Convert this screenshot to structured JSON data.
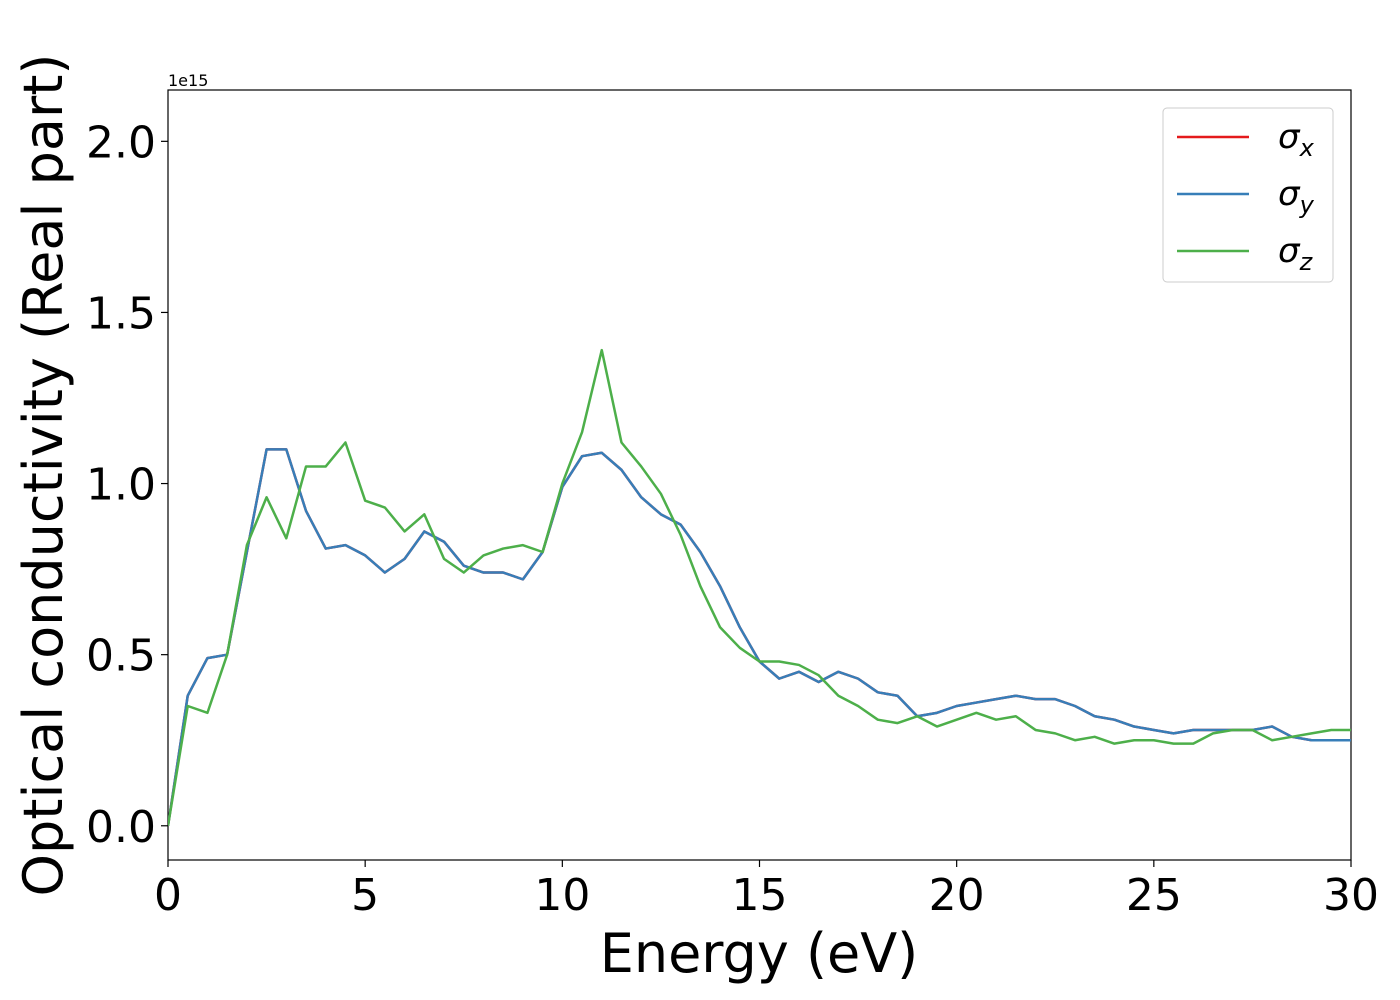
{
  "chart_data": {
    "type": "line",
    "xlabel": "Energy (eV)",
    "ylabel": "Optical conductivity (Real part)",
    "y_offset_label": "1e15",
    "x": [
      0,
      0.5,
      1,
      1.5,
      2,
      2.5,
      3,
      3.5,
      4,
      4.5,
      5,
      5.5,
      6,
      6.5,
      7,
      7.5,
      8,
      8.5,
      9,
      9.5,
      10,
      10.5,
      11,
      11.5,
      12,
      12.5,
      13,
      13.5,
      14,
      14.5,
      15,
      15.5,
      16,
      16.5,
      17,
      17.5,
      18,
      18.5,
      19,
      19.5,
      20,
      20.5,
      21,
      21.5,
      22,
      22.5,
      23,
      23.5,
      24,
      24.5,
      25,
      25.5,
      26,
      26.5,
      27,
      27.5,
      28,
      28.5,
      29,
      29.5,
      30
    ],
    "series": [
      {
        "name": "σx",
        "color": "#e41a1c",
        "values": [
          0,
          0.38,
          0.49,
          0.5,
          0.8,
          1.1,
          1.1,
          0.92,
          0.81,
          0.82,
          0.79,
          0.74,
          0.78,
          0.86,
          0.83,
          0.76,
          0.74,
          0.74,
          0.72,
          0.8,
          0.99,
          1.08,
          1.09,
          1.04,
          0.96,
          0.91,
          0.88,
          0.8,
          0.7,
          0.58,
          0.48,
          0.43,
          0.45,
          0.42,
          0.45,
          0.43,
          0.39,
          0.38,
          0.32,
          0.33,
          0.35,
          0.36,
          0.37,
          0.38,
          0.37,
          0.37,
          0.35,
          0.32,
          0.31,
          0.29,
          0.28,
          0.27,
          0.28,
          0.28,
          0.28,
          0.28,
          0.29,
          0.26,
          0.25,
          0.25,
          0.25
        ]
      },
      {
        "name": "σy",
        "color": "#377eb8",
        "values": [
          0,
          0.38,
          0.49,
          0.5,
          0.8,
          1.1,
          1.1,
          0.92,
          0.81,
          0.82,
          0.79,
          0.74,
          0.78,
          0.86,
          0.83,
          0.76,
          0.74,
          0.74,
          0.72,
          0.8,
          0.99,
          1.08,
          1.09,
          1.04,
          0.96,
          0.91,
          0.88,
          0.8,
          0.7,
          0.58,
          0.48,
          0.43,
          0.45,
          0.42,
          0.45,
          0.43,
          0.39,
          0.38,
          0.32,
          0.33,
          0.35,
          0.36,
          0.37,
          0.38,
          0.37,
          0.37,
          0.35,
          0.32,
          0.31,
          0.29,
          0.28,
          0.27,
          0.28,
          0.28,
          0.28,
          0.28,
          0.29,
          0.26,
          0.25,
          0.25,
          0.25
        ]
      },
      {
        "name": "σz",
        "color": "#4daf4a",
        "values": [
          0,
          0.35,
          0.33,
          0.5,
          0.82,
          0.96,
          0.84,
          1.05,
          1.05,
          1.12,
          0.95,
          0.93,
          0.86,
          0.91,
          0.78,
          0.74,
          0.79,
          0.81,
          0.82,
          0.8,
          1.0,
          1.15,
          1.39,
          1.12,
          1.05,
          0.97,
          0.85,
          0.7,
          0.58,
          0.52,
          0.48,
          0.48,
          0.47,
          0.44,
          0.38,
          0.35,
          0.31,
          0.3,
          0.32,
          0.29,
          0.31,
          0.33,
          0.31,
          0.32,
          0.28,
          0.27,
          0.25,
          0.26,
          0.24,
          0.25,
          0.25,
          0.24,
          0.24,
          0.27,
          0.28,
          0.28,
          0.25,
          0.26,
          0.27,
          0.28,
          0.28
        ]
      }
    ],
    "xlim": [
      0,
      30
    ],
    "xticks": [
      0,
      5,
      10,
      15,
      20,
      25,
      30
    ],
    "ylim": [
      -0.1,
      2.15
    ],
    "yticks": [
      {
        "value": 0,
        "label": "0.0"
      },
      0.5,
      {
        "value": 1,
        "label": "1.0"
      },
      1.5,
      {
        "value": 2,
        "label": "2.0"
      }
    ],
    "legend": "upper right",
    "grid": false
  }
}
